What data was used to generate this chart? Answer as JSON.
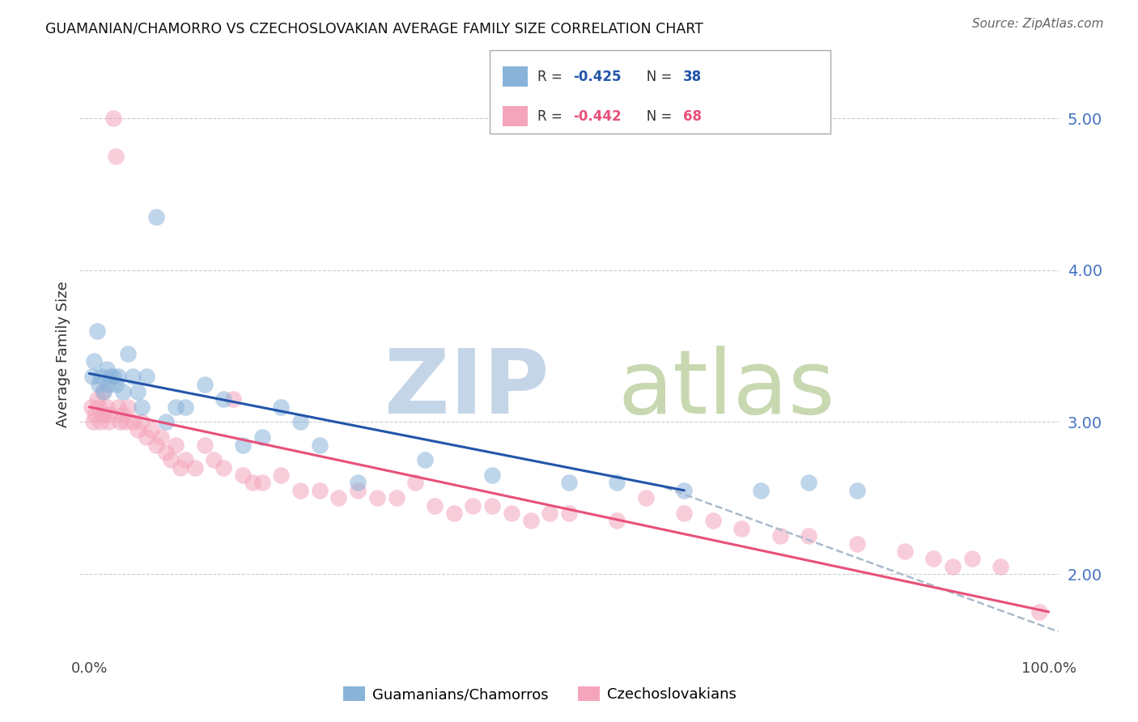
{
  "title": "GUAMANIAN/CHAMORRO VS CZECHOSLOVAKIAN AVERAGE FAMILY SIZE CORRELATION CHART",
  "source": "Source: ZipAtlas.com",
  "ylabel": "Average Family Size",
  "right_yticks": [
    2.0,
    3.0,
    4.0,
    5.0
  ],
  "right_ytick_color": "#4472c4",
  "blue_color": "#89b3d9",
  "pink_color": "#f4a5bc",
  "blue_line_color": "#2255aa",
  "pink_line_color": "#e8507a",
  "dashed_line_color": "#aabbcc",
  "legend_label1": "Guamanians/Chamorros",
  "legend_label2": "Czechoslovakians",
  "ylim": [
    1.5,
    5.4
  ],
  "xlim": [
    -1,
    101
  ],
  "guam_x": [
    0.3,
    0.5,
    0.8,
    1.0,
    1.2,
    1.5,
    1.8,
    2.0,
    2.2,
    2.5,
    2.8,
    3.0,
    3.5,
    4.0,
    4.5,
    5.0,
    5.5,
    6.0,
    7.0,
    8.0,
    9.0,
    10.0,
    12.0,
    14.0,
    16.0,
    18.0,
    20.0,
    22.0,
    24.0,
    28.0,
    35.0,
    42.0,
    50.0,
    55.0,
    62.0,
    70.0,
    75.0,
    80.0
  ],
  "guam_y": [
    3.3,
    3.4,
    3.6,
    3.25,
    3.3,
    3.2,
    3.35,
    3.25,
    3.3,
    3.3,
    3.25,
    3.3,
    3.2,
    3.45,
    3.3,
    3.2,
    3.1,
    3.3,
    4.35,
    3.0,
    3.1,
    3.1,
    3.25,
    3.15,
    2.85,
    2.9,
    3.1,
    3.0,
    2.85,
    2.6,
    2.75,
    2.65,
    2.6,
    2.6,
    2.55,
    2.55,
    2.6,
    2.55
  ],
  "czech_x": [
    0.2,
    0.4,
    0.6,
    0.8,
    1.0,
    1.2,
    1.4,
    1.6,
    1.8,
    2.0,
    2.2,
    2.5,
    2.8,
    3.0,
    3.2,
    3.5,
    3.8,
    4.0,
    4.5,
    5.0,
    5.5,
    6.0,
    6.5,
    7.0,
    7.5,
    8.0,
    8.5,
    9.0,
    9.5,
    10.0,
    11.0,
    12.0,
    13.0,
    14.0,
    15.0,
    16.0,
    17.0,
    18.0,
    20.0,
    22.0,
    24.0,
    26.0,
    28.0,
    30.0,
    32.0,
    34.0,
    36.0,
    38.0,
    40.0,
    42.0,
    44.0,
    46.0,
    48.0,
    50.0,
    55.0,
    58.0,
    62.0,
    65.0,
    68.0,
    72.0,
    75.0,
    80.0,
    85.0,
    88.0,
    90.0,
    92.0,
    95.0,
    99.0
  ],
  "czech_y": [
    3.1,
    3.0,
    3.05,
    3.15,
    3.1,
    3.0,
    3.2,
    3.05,
    3.1,
    3.0,
    3.05,
    5.0,
    4.75,
    3.1,
    3.0,
    3.05,
    3.0,
    3.1,
    3.0,
    2.95,
    3.0,
    2.9,
    2.95,
    2.85,
    2.9,
    2.8,
    2.75,
    2.85,
    2.7,
    2.75,
    2.7,
    2.85,
    2.75,
    2.7,
    3.15,
    2.65,
    2.6,
    2.6,
    2.65,
    2.55,
    2.55,
    2.5,
    2.55,
    2.5,
    2.5,
    2.6,
    2.45,
    2.4,
    2.45,
    2.45,
    2.4,
    2.35,
    2.4,
    2.4,
    2.35,
    2.5,
    2.4,
    2.35,
    2.3,
    2.25,
    2.25,
    2.2,
    2.15,
    2.1,
    2.05,
    2.1,
    2.05,
    1.75
  ],
  "blue_line_x": [
    0,
    62
  ],
  "blue_line_y": [
    3.32,
    2.55
  ],
  "pink_line_x": [
    0,
    100
  ],
  "pink_line_y": [
    3.1,
    1.75
  ],
  "dash_line_x": [
    60,
    101
  ],
  "dash_line_y": [
    2.57,
    1.62
  ]
}
